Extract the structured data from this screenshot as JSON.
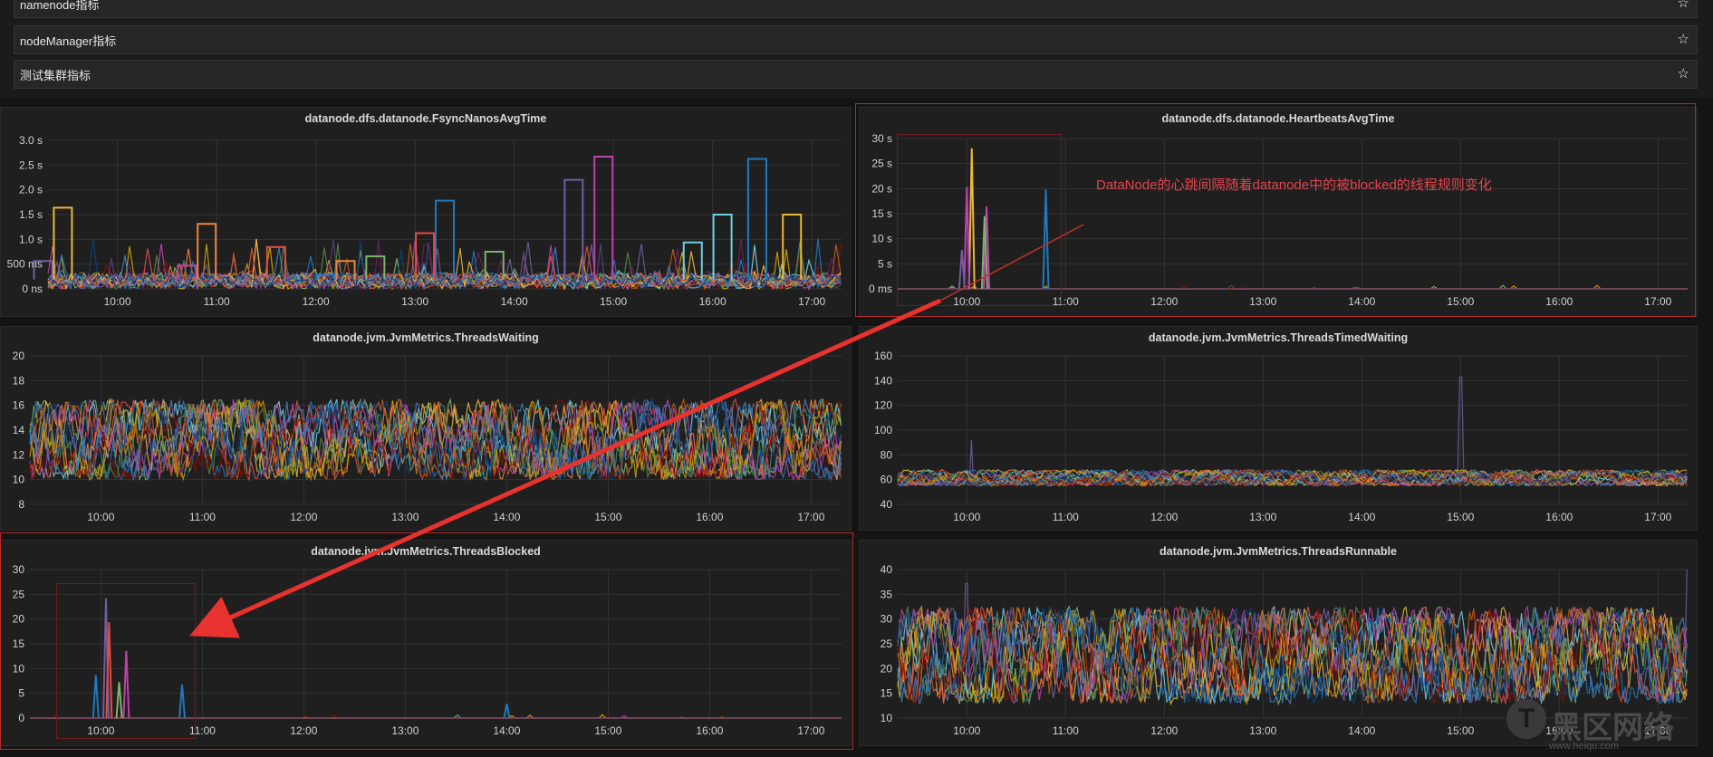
{
  "rows": [
    {
      "title": "namenode指标"
    },
    {
      "title": "nodeManager指标"
    },
    {
      "title": "测试集群指标"
    }
  ],
  "icons": {
    "star": "star-icon"
  },
  "times": [
    "10:00",
    "11:00",
    "12:00",
    "13:00",
    "14:00",
    "15:00",
    "16:00",
    "17:00"
  ],
  "annotation": {
    "text": "DataNode的心跳间隔随着datanode中的被blocked的线程规则变化",
    "color": "#e0454c"
  },
  "watermark": {
    "text": "黑区网络",
    "url": "www.heiqu.com"
  },
  "series_colors": [
    "#7eb26d",
    "#eab839",
    "#6ed0e0",
    "#ef843c",
    "#e24d42",
    "#1f78c1",
    "#ba43a9",
    "#705da0",
    "#508642",
    "#cca300",
    "#447ebc",
    "#c15c17",
    "#890f02",
    "#0a437c",
    "#6d1f62",
    "#584477"
  ],
  "chart_data": [
    {
      "type": "line",
      "title": "datanode.dfs.datanode.FsyncNanosAvgTime",
      "ylabel": "",
      "yticks": [
        "0 ns",
        "500 ms",
        "1.0 s",
        "1.5 s",
        "2.0 s",
        "2.5 s",
        "3.0 s"
      ],
      "ylim": [
        0,
        3.2
      ],
      "unit": "s",
      "grid": true,
      "series": [
        {
          "color": "#1f78c1",
          "peaks": [
            [
              16.45,
              2.8
            ],
            [
              12.1,
              0.3
            ],
            [
              13.3,
              1.9
            ]
          ]
        },
        {
          "color": "#ba43a9",
          "peaks": [
            [
              14.9,
              2.85
            ],
            [
              10.7,
              0.5
            ]
          ]
        },
        {
          "color": "#705da0",
          "peaks": [
            [
              14.6,
              2.35
            ],
            [
              9.25,
              0.6
            ]
          ]
        },
        {
          "color": "#eab839",
          "peaks": [
            [
              16.8,
              1.6
            ],
            [
              9.45,
              1.75
            ]
          ]
        },
        {
          "color": "#6ed0e0",
          "peaks": [
            [
              15.8,
              1.0
            ],
            [
              16.1,
              1.6
            ]
          ]
        },
        {
          "color": "#ef843c",
          "peaks": [
            [
              10.9,
              1.4
            ],
            [
              12.3,
              0.6
            ]
          ]
        },
        {
          "color": "#e24d42",
          "peaks": [
            [
              11.6,
              0.9
            ],
            [
              13.1,
              1.2
            ]
          ]
        },
        {
          "color": "#7eb26d",
          "peaks": [
            [
              13.8,
              0.8
            ],
            [
              12.6,
              0.7
            ]
          ]
        }
      ]
    },
    {
      "type": "line",
      "title": "datanode.dfs.datanode.HeartbeatsAvgTime",
      "ylabel": "",
      "yticks": [
        "0 ms",
        "5 s",
        "10 s",
        "15 s",
        "20 s",
        "25 s",
        "30 s"
      ],
      "ylim": [
        0,
        31
      ],
      "unit": "s",
      "grid": true,
      "series": [
        {
          "color": "#eab839",
          "peaks": [
            [
              10.05,
              29
            ]
          ]
        },
        {
          "color": "#ba43a9",
          "peaks": [
            [
              10.0,
              21
            ],
            [
              10.2,
              17
            ]
          ]
        },
        {
          "color": "#1f78c1",
          "peaks": [
            [
              10.8,
              20.5
            ]
          ]
        },
        {
          "color": "#7eb26d",
          "peaks": [
            [
              10.18,
              15
            ]
          ]
        },
        {
          "color": "#705da0",
          "peaks": [
            [
              9.95,
              8
            ]
          ]
        }
      ]
    },
    {
      "type": "line",
      "title": "datanode.jvm.JvmMetrics.ThreadsWaiting",
      "ylabel": "",
      "yticks": [
        "8",
        "10",
        "12",
        "14",
        "16",
        "18",
        "20"
      ],
      "ylim": [
        8,
        20
      ],
      "grid": true,
      "series": [
        {
          "range": [
            10,
            17
          ],
          "noise_band": [
            10,
            16.5
          ]
        }
      ]
    },
    {
      "type": "line",
      "title": "datanode.jvm.JvmMetrics.ThreadsTimedWaiting",
      "ylabel": "",
      "yticks": [
        "40",
        "60",
        "80",
        "100",
        "120",
        "140",
        "160"
      ],
      "ylim": [
        40,
        160
      ],
      "grid": true,
      "series": [
        {
          "noise_band": [
            55,
            68
          ],
          "peaks": [
            [
              15.0,
              143
            ],
            [
              10.05,
              92
            ]
          ]
        }
      ]
    },
    {
      "type": "line",
      "title": "datanode.jvm.JvmMetrics.ThreadsBlocked",
      "ylabel": "",
      "yticks": [
        "0",
        "5",
        "10",
        "15",
        "20",
        "25",
        "30"
      ],
      "ylim": [
        0,
        31
      ],
      "grid": true,
      "series": [
        {
          "color": "#705da0",
          "peaks": [
            [
              10.05,
              25
            ]
          ]
        },
        {
          "color": "#e24d42",
          "peaks": [
            [
              10.08,
              20
            ]
          ]
        },
        {
          "color": "#ba43a9",
          "peaks": [
            [
              10.25,
              14
            ]
          ]
        },
        {
          "color": "#1f78c1",
          "peaks": [
            [
              9.95,
              9
            ],
            [
              10.8,
              7
            ],
            [
              14.0,
              3
            ]
          ]
        },
        {
          "color": "#7eb26d",
          "peaks": [
            [
              10.18,
              7.5
            ]
          ]
        }
      ]
    },
    {
      "type": "line",
      "title": "datanode.jvm.JvmMetrics.ThreadsRunnable",
      "ylabel": "",
      "yticks": [
        "10",
        "15",
        "20",
        "25",
        "30",
        "35",
        "40"
      ],
      "ylim": [
        10,
        42
      ],
      "grid": true,
      "series": [
        {
          "noise_band": [
            13,
            34
          ],
          "peaks": [
            [
              10.0,
              39
            ],
            [
              17.3,
              42
            ]
          ]
        }
      ]
    }
  ]
}
